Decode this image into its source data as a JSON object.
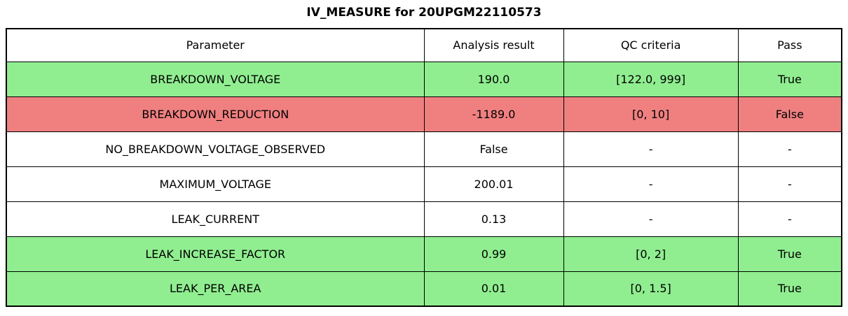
{
  "chart_data": {
    "type": "table",
    "title": "IV_MEASURE for 20UPGM22110573",
    "columns": [
      "Parameter",
      "Analysis result",
      "QC criteria",
      "Pass"
    ],
    "rows": [
      [
        "BREAKDOWN_VOLTAGE",
        "190.0",
        "[122.0, 999]",
        "True"
      ],
      [
        "BREAKDOWN_REDUCTION",
        "-1189.0",
        "[0, 10]",
        "False"
      ],
      [
        "NO_BREAKDOWN_VOLTAGE_OBSERVED",
        "False",
        "-",
        "-"
      ],
      [
        "MAXIMUM_VOLTAGE",
        "200.01",
        "-",
        "-"
      ],
      [
        "LEAK_CURRENT",
        "0.13",
        "-",
        "-"
      ],
      [
        "LEAK_INCREASE_FACTOR",
        "0.99",
        "[0, 2]",
        "True"
      ],
      [
        "LEAK_PER_AREA",
        "0.01",
        "[0, 1.5]",
        "True"
      ]
    ],
    "row_status": [
      "pass",
      "fail",
      "neutral",
      "neutral",
      "neutral",
      "pass",
      "pass"
    ],
    "layout": {
      "grid": "on",
      "legend": "none",
      "column_width_percent": [
        50.0,
        16.7,
        20.9,
        12.4
      ]
    }
  },
  "colors": {
    "pass": "#90EE90",
    "fail": "#F08080",
    "neutral": "#FFFFFF",
    "border": "#000000",
    "text": "#000000"
  }
}
